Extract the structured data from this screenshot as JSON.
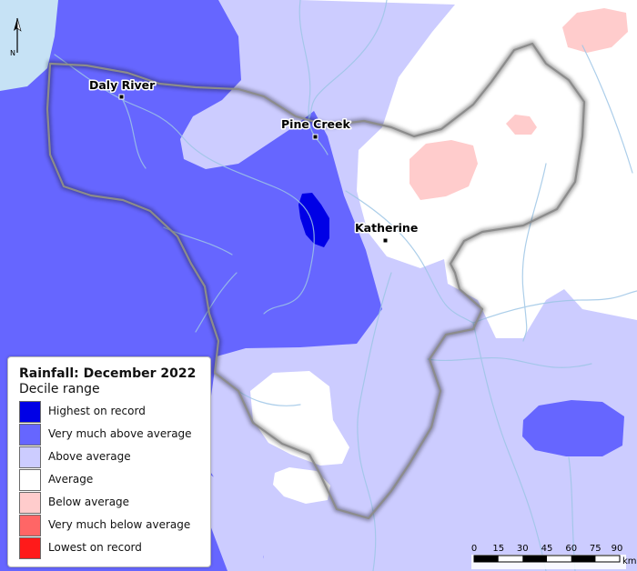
{
  "legend": {
    "title": "Rainfall: December 2022",
    "subtitle": "Decile range",
    "items": [
      {
        "label": "Highest on record",
        "color": "#0000e6"
      },
      {
        "label": "Very much above average",
        "color": "#6666ff"
      },
      {
        "label": "Above average",
        "color": "#ccccff"
      },
      {
        "label": "Average",
        "color": "#ffffff"
      },
      {
        "label": "Below average",
        "color": "#ffcccc"
      },
      {
        "label": "Very much below average",
        "color": "#ff6666"
      },
      {
        "label": "Lowest on record",
        "color": "#ff1a1a"
      }
    ]
  },
  "places": [
    {
      "name": "Daly River"
    },
    {
      "name": "Pine Creek"
    },
    {
      "name": "Katherine"
    }
  ],
  "north_arrow": {
    "label": "N"
  },
  "scale_bar": {
    "ticks": [
      "0",
      "15",
      "30",
      "45",
      "60",
      "75",
      "90"
    ],
    "unit": "km"
  },
  "colors": {
    "water": "#c6e2f5",
    "river": "#9ec6e6",
    "boundary": "#888888"
  }
}
